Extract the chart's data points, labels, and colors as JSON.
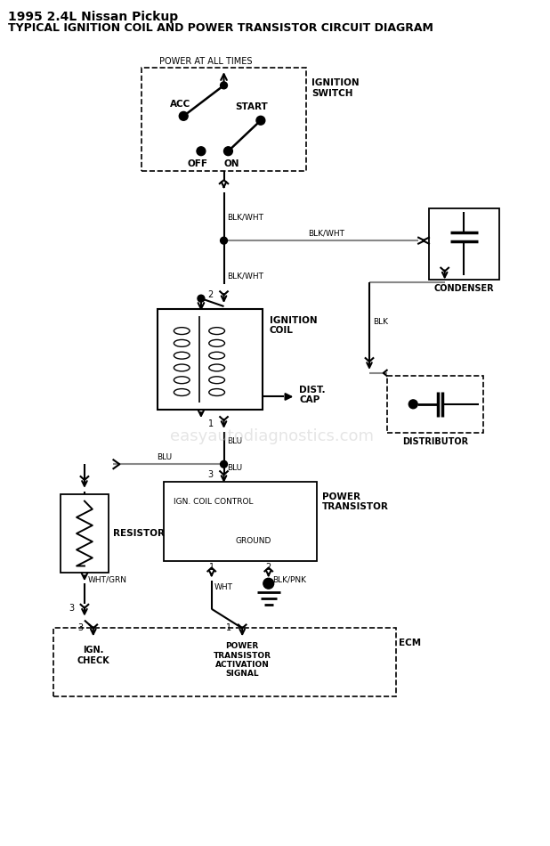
{
  "title_line1": "1995 2.4L Nissan Pickup",
  "title_line2": "TYPICAL IGNITION COIL AND POWER TRANSISTOR CIRCUIT DIAGRAM",
  "watermark": "easyautodiagnostics.com",
  "bg_color": "#ffffff",
  "text_color": "#000000",
  "wire_gray": "#888888"
}
